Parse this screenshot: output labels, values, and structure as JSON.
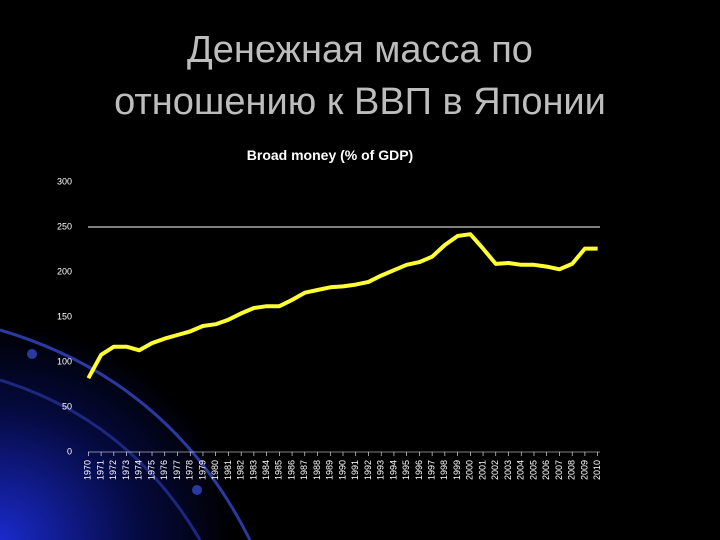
{
  "slide_title": [
    "Денежная масса по",
    "отношению к ВВП в Японии"
  ],
  "chart_data": {
    "type": "line",
    "title": "Broad money (% of GDP)",
    "categories": [
      "1970",
      "1971",
      "1972",
      "1973",
      "1974",
      "1975",
      "1976",
      "1977",
      "1978",
      "1979",
      "1980",
      "1981",
      "1982",
      "1983",
      "1984",
      "1985",
      "1986",
      "1987",
      "1988",
      "1989",
      "1990",
      "1991",
      "1992",
      "1993",
      "1994",
      "1995",
      "1996",
      "1997",
      "1998",
      "1999",
      "2000",
      "2001",
      "2002",
      "2003",
      "2004",
      "2005",
      "2006",
      "2007",
      "2008",
      "2009",
      "2010"
    ],
    "series": [
      {
        "name": "Broad money (% of GDP)",
        "color": "#ffff33",
        "values": [
          82,
          108,
          117,
          117,
          113,
          121,
          126,
          130,
          134,
          140,
          142,
          147,
          154,
          160,
          162,
          162,
          169,
          177,
          180,
          183,
          184,
          186,
          189,
          196,
          202,
          208,
          211,
          217,
          230,
          240,
          242,
          226,
          209,
          210,
          208,
          208,
          206,
          203,
          209,
          226,
          226
        ]
      }
    ],
    "ylim": [
      0,
      300
    ],
    "yticks": [
      0,
      50,
      100,
      150,
      200,
      250,
      300
    ],
    "reference_lines": [
      250
    ],
    "legend": false
  }
}
